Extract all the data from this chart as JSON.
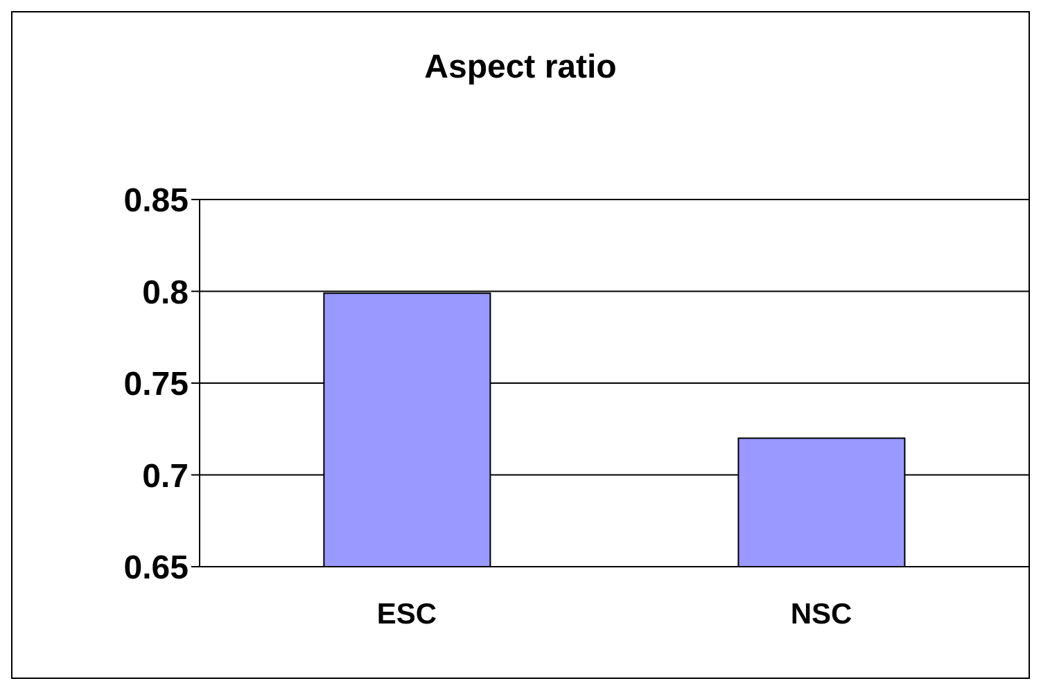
{
  "chart_data": {
    "type": "bar",
    "title": "Aspect ratio",
    "categories": [
      "ESC",
      "NSC"
    ],
    "values": [
      0.799,
      0.72
    ],
    "color": "#9999ff",
    "ylim": [
      0.65,
      0.85
    ],
    "yticks": [
      0.65,
      0.7,
      0.75,
      0.8,
      0.85
    ],
    "grid": "y"
  }
}
